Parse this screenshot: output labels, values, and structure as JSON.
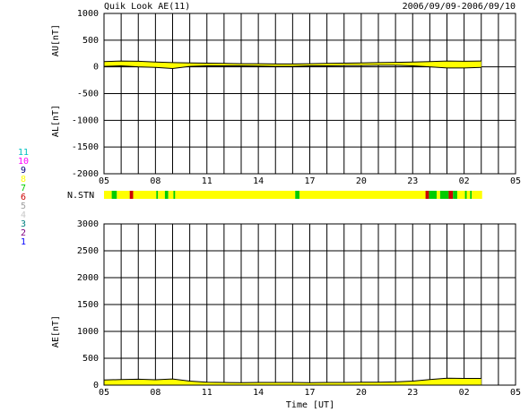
{
  "title": "Quik Look AE(11)",
  "date_range": "2006/09/09-2006/09/10",
  "x_label": "Time [UT]",
  "chart_data": [
    {
      "type": "band",
      "ylabel_upper": "AU[nT]",
      "ylabel_lower": "AL[nT]",
      "xlim": [
        5,
        29
      ],
      "xgrid_step": 1,
      "xticks": [
        {
          "value": 5,
          "label": "05"
        },
        {
          "value": 8,
          "label": "08"
        },
        11,
        14,
        17,
        20,
        23,
        {
          "value": 26,
          "label": "02"
        },
        {
          "value": 29,
          "label": "05"
        }
      ],
      "ylim": [
        -2000,
        1000
      ],
      "yticks": [
        -2000,
        -1500,
        -1000,
        -500,
        0,
        500,
        1000
      ],
      "x": [
        5,
        6,
        7,
        8,
        9,
        10,
        11,
        12,
        13,
        14,
        15,
        16,
        17,
        18,
        19,
        20,
        21,
        22,
        23,
        24,
        25,
        26,
        27
      ],
      "upper": [
        100,
        110,
        105,
        90,
        80,
        75,
        70,
        65,
        60,
        60,
        55,
        55,
        60,
        65,
        70,
        75,
        80,
        85,
        90,
        100,
        110,
        105,
        110
      ],
      "lower": [
        10,
        20,
        0,
        -10,
        -30,
        10,
        20,
        20,
        20,
        15,
        10,
        10,
        20,
        20,
        25,
        25,
        30,
        30,
        20,
        0,
        -20,
        -20,
        -10
      ],
      "fill": "#ffff00"
    },
    {
      "type": "strip",
      "label": "N.STN",
      "xlim": [
        5,
        29
      ],
      "edges": [
        5,
        5.45,
        5.75,
        6.5,
        6.7,
        8.05,
        8.15,
        8.55,
        8.75,
        9.05,
        9.15,
        16.15,
        16.4,
        23.75,
        23.95,
        24.4,
        24.6,
        25.1,
        25.35,
        25.6,
        26.05,
        26.15,
        26.35,
        26.45,
        27.05
      ],
      "values": [
        8,
        7,
        8,
        6,
        8,
        7,
        8,
        7,
        8,
        7,
        8,
        7,
        8,
        6,
        7,
        8,
        7,
        6,
        7,
        8,
        7,
        8,
        7,
        8
      ],
      "legend": {
        "values": [
          11,
          10,
          9,
          8,
          7,
          6,
          5,
          4,
          3,
          2,
          1
        ],
        "colors": [
          "#00c0c0",
          "#ff00ff",
          "#000080",
          "#ffff00",
          "#00cc00",
          "#cc0000",
          "#a0a0a0",
          "#c8c8c8",
          "#008080",
          "#800080",
          "#0000ff"
        ]
      }
    },
    {
      "type": "line",
      "ylabel": "AE[nT]",
      "xlim": [
        5,
        29
      ],
      "xgrid_step": 1,
      "xticks": [
        {
          "value": 5,
          "label": "05"
        },
        {
          "value": 8,
          "label": "08"
        },
        11,
        14,
        17,
        20,
        23,
        {
          "value": 26,
          "label": "02"
        },
        {
          "value": 29,
          "label": "05"
        }
      ],
      "ylim": [
        0,
        3000
      ],
      "yticks": [
        0,
        500,
        1000,
        1500,
        2000,
        2500,
        3000
      ],
      "x": [
        5,
        6,
        7,
        8,
        9,
        10,
        11,
        12,
        13,
        14,
        15,
        16,
        17,
        18,
        19,
        20,
        21,
        22,
        23,
        24,
        25,
        26,
        27
      ],
      "values": [
        95,
        105,
        110,
        100,
        115,
        75,
        55,
        50,
        45,
        50,
        50,
        50,
        45,
        50,
        50,
        55,
        55,
        60,
        75,
        105,
        130,
        125,
        125
      ],
      "fill": "#ffff00"
    }
  ]
}
